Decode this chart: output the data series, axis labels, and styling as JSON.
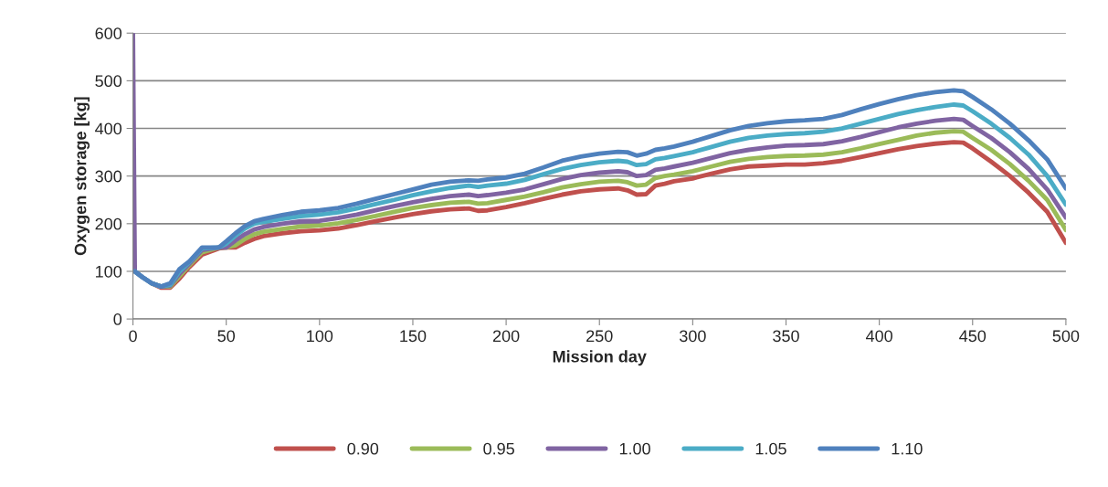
{
  "chart_data": {
    "type": "line",
    "xlabel": "Mission day",
    "ylabel": "Oxygen storage [kg]",
    "x": [
      0,
      1,
      5,
      10,
      15,
      20,
      25,
      30,
      37,
      46,
      50,
      55,
      60,
      65,
      70,
      80,
      90,
      100,
      110,
      120,
      130,
      140,
      150,
      160,
      170,
      180,
      185,
      190,
      200,
      210,
      220,
      230,
      240,
      250,
      260,
      265,
      270,
      275,
      280,
      285,
      290,
      300,
      310,
      320,
      330,
      340,
      350,
      360,
      370,
      380,
      390,
      400,
      410,
      420,
      430,
      440,
      445,
      450,
      460,
      470,
      480,
      490,
      500
    ],
    "series": [
      {
        "name": "0.90",
        "color": "#c0504d",
        "values": [
          null,
          null,
          null,
          75,
          66,
          66,
          85,
          108,
          135,
          148,
          150,
          150,
          160,
          168,
          174,
          180,
          184,
          186,
          190,
          197,
          205,
          213,
          220,
          226,
          230,
          232,
          227,
          228,
          235,
          243,
          252,
          261,
          268,
          272,
          274,
          270,
          261,
          262,
          280,
          284,
          289,
          295,
          305,
          314,
          320,
          322,
          324,
          324,
          327,
          332,
          340,
          348,
          356,
          363,
          368,
          371,
          370,
          358,
          330,
          300,
          265,
          225,
          160
        ]
      },
      {
        "name": "0.95",
        "color": "#9bbb59",
        "values": [
          null,
          null,
          null,
          75,
          68,
          68,
          90,
          112,
          140,
          150,
          150,
          155,
          168,
          178,
          183,
          189,
          194,
          196,
          201,
          208,
          216,
          225,
          233,
          239,
          244,
          246,
          242,
          243,
          250,
          257,
          266,
          276,
          283,
          288,
          290,
          287,
          280,
          282,
          296,
          300,
          303,
          310,
          320,
          330,
          336,
          340,
          342,
          343,
          345,
          350,
          358,
          367,
          376,
          385,
          391,
          394,
          393,
          380,
          355,
          325,
          290,
          250,
          187
        ]
      },
      {
        "name": "1.00",
        "color": "#8064a2",
        "values": [
          600,
          100,
          88,
          75,
          68,
          70,
          95,
          115,
          145,
          150,
          150,
          165,
          178,
          188,
          193,
          200,
          205,
          206,
          212,
          219,
          228,
          237,
          245,
          252,
          258,
          261,
          258,
          260,
          265,
          272,
          283,
          294,
          302,
          307,
          310,
          308,
          300,
          302,
          313,
          316,
          320,
          328,
          338,
          348,
          355,
          360,
          364,
          365,
          367,
          373,
          382,
          392,
          402,
          410,
          416,
          420,
          418,
          405,
          380,
          350,
          315,
          272,
          213
        ]
      },
      {
        "name": "1.05",
        "color": "#4bacc6",
        "values": [
          null,
          100,
          88,
          75,
          68,
          72,
          100,
          118,
          148,
          150,
          158,
          175,
          190,
          200,
          204,
          210,
          216,
          219,
          224,
          232,
          241,
          250,
          260,
          268,
          275,
          280,
          277,
          280,
          284,
          292,
          304,
          315,
          323,
          329,
          332,
          330,
          323,
          325,
          335,
          338,
          342,
          350,
          361,
          372,
          380,
          385,
          388,
          390,
          393,
          400,
          410,
          420,
          430,
          438,
          445,
          450,
          448,
          436,
          410,
          380,
          345,
          300,
          240
        ]
      },
      {
        "name": "1.10",
        "color": "#4f81bd",
        "values": [
          null,
          100,
          88,
          75,
          68,
          75,
          105,
          120,
          150,
          150,
          163,
          180,
          195,
          205,
          210,
          218,
          225,
          228,
          233,
          242,
          252,
          262,
          272,
          282,
          288,
          291,
          290,
          293,
          297,
          305,
          318,
          332,
          341,
          347,
          351,
          350,
          343,
          347,
          355,
          358,
          362,
          372,
          384,
          396,
          405,
          411,
          415,
          417,
          420,
          428,
          440,
          451,
          461,
          470,
          476,
          480,
          478,
          466,
          440,
          410,
          375,
          335,
          274
        ]
      }
    ],
    "xlim": [
      0,
      500
    ],
    "xticks": [
      0,
      50,
      100,
      150,
      200,
      250,
      300,
      350,
      400,
      450,
      500
    ],
    "ylim": [
      0,
      600
    ],
    "yticks": [
      0,
      100,
      200,
      300,
      400,
      500,
      600
    ],
    "grid": "y",
    "legend": "bottom",
    "line_style": "solid",
    "marker": "none"
  }
}
